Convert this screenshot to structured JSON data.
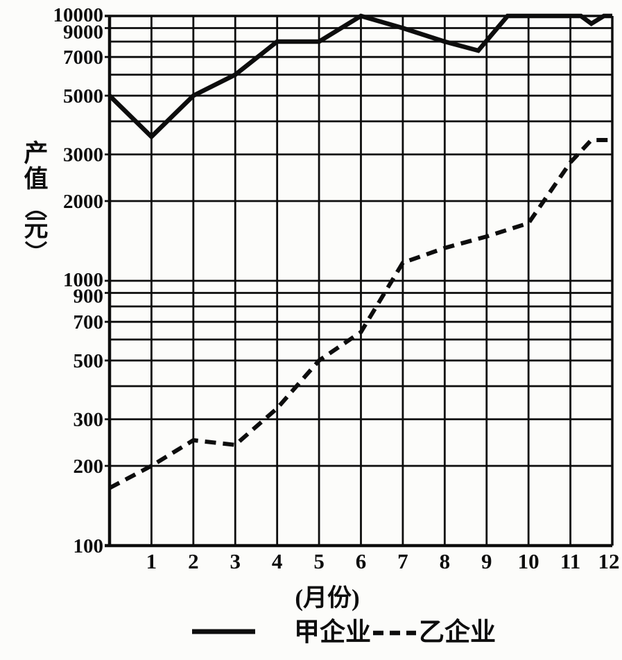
{
  "page": {
    "background": "#fcfcfa",
    "ink_color": "#0d0d0d"
  },
  "chart_data": {
    "type": "line",
    "title": "",
    "ylabel": "产值",
    "y_unit": "元",
    "xlabel": "(月份)",
    "y_scale": "log",
    "ylim": [
      100,
      10000
    ],
    "xlim": [
      0,
      12
    ],
    "grid": "on",
    "legend_position": "bottom",
    "x_ticks": [
      "1",
      "2",
      "3",
      "4",
      "5",
      "6",
      "7",
      "8",
      "9",
      "10",
      "11",
      "12"
    ],
    "y_gridlines": [
      100,
      200,
      300,
      400,
      500,
      600,
      700,
      800,
      900,
      1000,
      2000,
      3000,
      4000,
      5000,
      6000,
      7000,
      8000,
      9000,
      10000
    ],
    "y_tick_labels": [
      "10000",
      "9000",
      "7000",
      "5000",
      "3000",
      "2000",
      "1000",
      "900",
      "700",
      "500",
      "300",
      "200",
      "100"
    ],
    "series": [
      {
        "name": "甲企业",
        "line_style": "solid",
        "color": "#0d0d0d",
        "points": [
          [
            0,
            5000
          ],
          [
            1,
            3500
          ],
          [
            2,
            5000
          ],
          [
            3,
            6000
          ],
          [
            4,
            8000
          ],
          [
            5,
            8000
          ],
          [
            6,
            10000
          ],
          [
            7,
            9000
          ],
          [
            8,
            8000
          ],
          [
            8.8,
            7400
          ],
          [
            9.5,
            10000
          ],
          [
            10,
            10000
          ],
          [
            11,
            10000
          ],
          [
            11.25,
            10000
          ],
          [
            11.5,
            9350
          ],
          [
            11.8,
            10000
          ],
          [
            12,
            10000
          ]
        ]
      },
      {
        "name": "乙企业",
        "line_style": "dashed",
        "color": "#0d0d0d",
        "points": [
          [
            0,
            165
          ],
          [
            1,
            200
          ],
          [
            2,
            250
          ],
          [
            3,
            240
          ],
          [
            4,
            330
          ],
          [
            5,
            500
          ],
          [
            6,
            640
          ],
          [
            7,
            1170
          ],
          [
            8,
            1330
          ],
          [
            9,
            1470
          ],
          [
            10,
            1650
          ],
          [
            11,
            2800
          ],
          [
            11.5,
            3400
          ],
          [
            12,
            3400
          ]
        ]
      }
    ],
    "legend": [
      {
        "label": "甲企业",
        "line_style": "solid"
      },
      {
        "label": "乙企业",
        "line_style": "dashed"
      }
    ]
  }
}
